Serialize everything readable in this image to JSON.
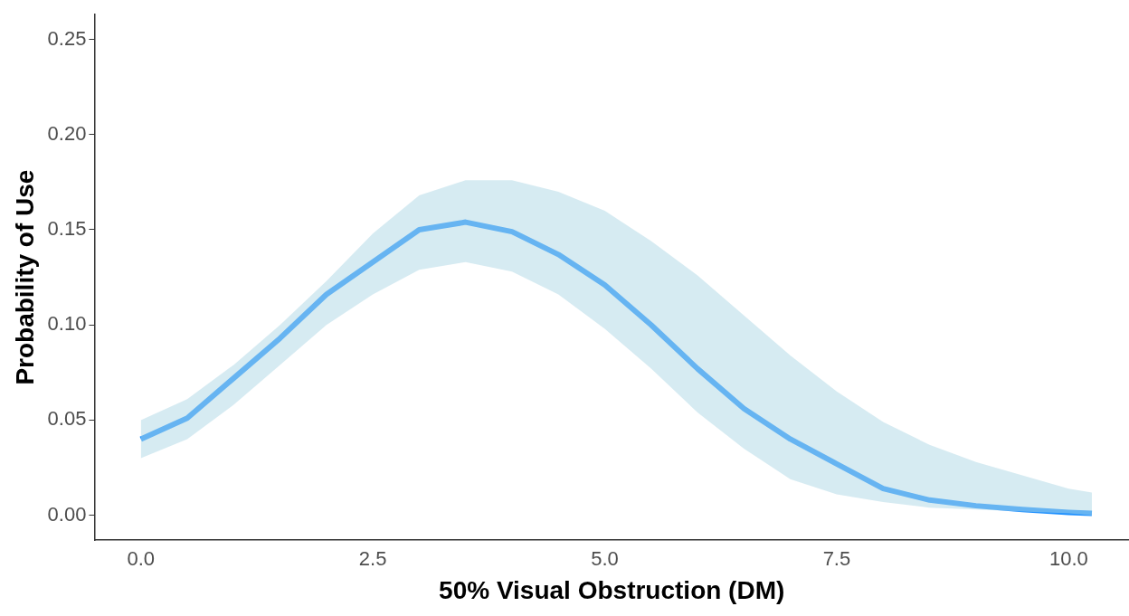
{
  "chart_data": {
    "type": "line",
    "xlabel": "50% Visual Obstruction (DM)",
    "ylabel": "Probability of Use",
    "x": [
      0,
      0.5,
      1,
      1.5,
      2,
      2.5,
      3,
      3.5,
      4,
      4.5,
      5,
      5.5,
      6,
      6.5,
      7,
      7.5,
      8,
      8.5,
      9,
      9.5,
      10,
      10.25
    ],
    "series": [
      {
        "color": "#1e90ff",
        "values": [
          0.04,
          0.051,
          0.072,
          0.093,
          0.116,
          0.133,
          0.15,
          0.154,
          0.149,
          0.137,
          0.121,
          0.1,
          0.077,
          0.056,
          0.04,
          0.027,
          0.014,
          0.008,
          0.005,
          0.003,
          0.0015,
          0.001
        ],
        "lower": [
          0.03,
          0.04,
          0.058,
          0.079,
          0.1,
          0.116,
          0.129,
          0.133,
          0.128,
          0.116,
          0.098,
          0.077,
          0.054,
          0.035,
          0.019,
          0.011,
          0.007,
          0.004,
          0.003,
          0.002,
          0.001,
          0.0
        ],
        "upper": [
          0.05,
          0.061,
          0.079,
          0.1,
          0.123,
          0.148,
          0.168,
          0.176,
          0.176,
          0.17,
          0.16,
          0.144,
          0.126,
          0.105,
          0.084,
          0.065,
          0.049,
          0.037,
          0.028,
          0.021,
          0.014,
          0.012
        ]
      }
    ],
    "xlim": [
      -0.5,
      10.65
    ],
    "ylim": [
      -0.013,
      0.263
    ],
    "xticks": [
      {
        "value": 0,
        "label": "0.0"
      },
      2.5,
      {
        "value": 5,
        "label": "5.0"
      },
      7.5,
      {
        "value": 10,
        "label": "10.0"
      }
    ],
    "yticks": [
      {
        "value": 0,
        "label": "0.00"
      },
      0.05,
      {
        "value": 0.1,
        "label": "0.10"
      },
      0.15,
      {
        "value": 0.2,
        "label": "0.20"
      },
      0.25
    ],
    "grid": false,
    "marker": "none",
    "line_style": "solid"
  }
}
